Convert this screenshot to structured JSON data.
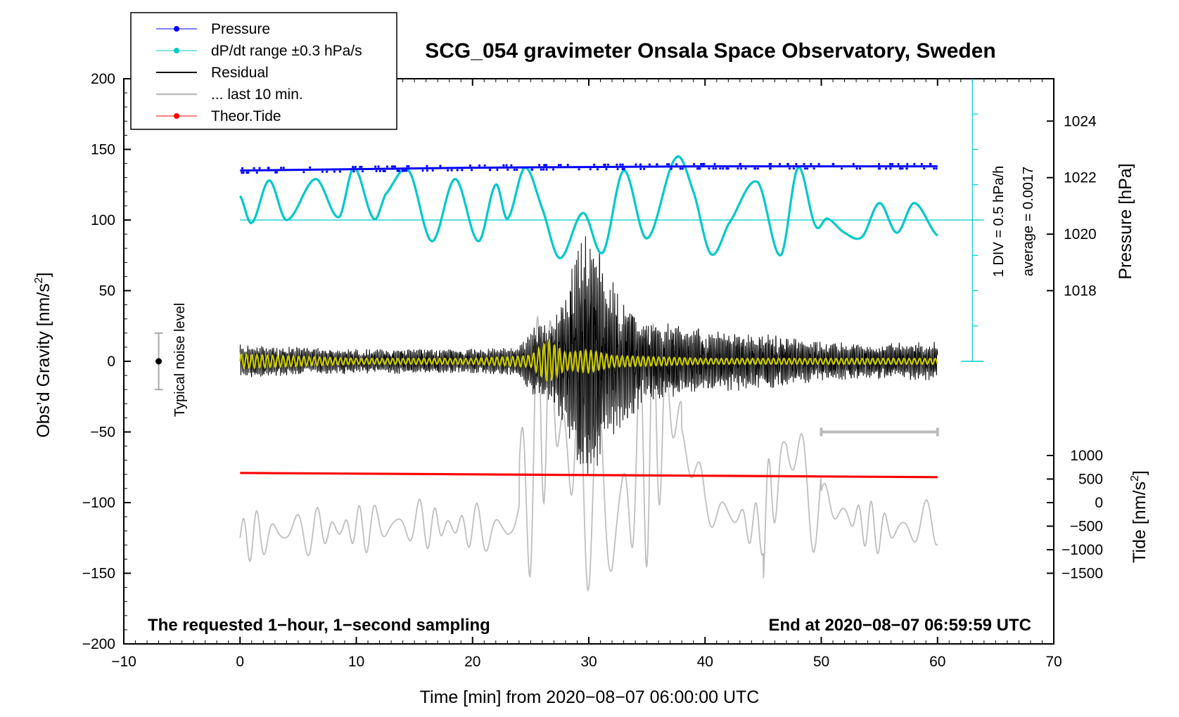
{
  "chart_data": {
    "type": "line",
    "title": "SCG_054 gravimeter Onsala Space Observatory, Sweden",
    "xlabel": "Time [min] from 2020−08−07 06:00:00 UTC",
    "ylabel": "Obs’d Gravity [nm/s",
    "ylabel_sup": "2",
    "ylabel_close": "]",
    "y2label": "Pressure [hPa]",
    "y3label": "Tide [nm/s",
    "y3label_sup": "2",
    "y3label_close": "]",
    "xlim": [
      -10,
      70
    ],
    "ylim": [
      -200,
      200
    ],
    "pressure_axis_ticks": [
      1018,
      1020,
      1022,
      1024
    ],
    "tide_axis_ticks": [
      1000,
      500,
      0,
      -500,
      -1000,
      -1500
    ],
    "x_ticks": [
      -10,
      0,
      10,
      20,
      30,
      40,
      50,
      60,
      70
    ],
    "y_ticks": [
      200,
      150,
      100,
      50,
      0,
      -50,
      -100,
      -150,
      -200
    ],
    "x_tick_labels": [
      "−10",
      "0",
      "10",
      "20",
      "30",
      "40",
      "50",
      "60",
      "70"
    ],
    "y_tick_labels": [
      "200",
      "150",
      "100",
      "50",
      "0",
      "−50",
      "−100",
      "−150",
      "−200"
    ],
    "pressure_tick_labels": [
      "1018",
      "1020",
      "1022",
      "1024"
    ],
    "tide_tick_labels": [
      "1000",
      "500",
      "0",
      "−500",
      "−1000",
      "−1500"
    ],
    "legend_position": "top-left",
    "legend": [
      {
        "label": "Pressure",
        "color": "#0000ff",
        "marker": true
      },
      {
        "label": "dP/dt range ±0.3 hPa/s",
        "color": "#00c8c8",
        "marker": true
      },
      {
        "label": "Residual",
        "color": "#000000",
        "marker": false
      },
      {
        "label": "... last 10 min.",
        "color": "#bebebe",
        "marker": false
      },
      {
        "label": "Theor.Tide",
        "color": "#ff0000",
        "marker": true
      }
    ],
    "annotations": {
      "scale_label": "1 DIV = 0.5 hPa/h",
      "average_label": "average = 0.0017",
      "noise_label": "Typical noise level",
      "bottom_left": "The requested 1−hour, 1−second sampling",
      "bottom_right": "End at 2020−08−07 06:59:59 UTC"
    },
    "series": [
      {
        "name": "Pressure",
        "color": "#0000ff",
        "x": [
          0,
          10,
          20,
          30,
          40,
          50,
          60
        ],
        "y": [
          135,
          136,
          137,
          137.5,
          138,
          138,
          138
        ]
      },
      {
        "name": "dP/dt range ±0.3 hPa/s",
        "color": "#00c8c8",
        "x": [
          0,
          1,
          2.5,
          4,
          6.5,
          8.5,
          9.8,
          11.5,
          12.5,
          14.5,
          16.5,
          18.5,
          20.5,
          22,
          23,
          24.5,
          26,
          27.5,
          29.5,
          31.2,
          33,
          35,
          37.5,
          39,
          40.5,
          42,
          44.5,
          46.5,
          48,
          49.5,
          50.5,
          52,
          53.5,
          55,
          56.5,
          58,
          60
        ],
        "y": [
          117,
          98,
          128,
          100,
          129,
          102,
          137,
          101,
          118,
          135,
          85,
          129,
          85,
          125,
          101,
          137,
          108,
          73,
          105,
          77,
          135,
          87,
          144,
          120,
          76,
          97,
          127,
          75,
          137,
          96,
          101,
          91,
          88,
          112,
          91,
          112,
          89
        ]
      },
      {
        "name": "Residual",
        "color": "#000000",
        "x": [
          0,
          10,
          20,
          24,
          25,
          27,
          28,
          29,
          29.5,
          30,
          31,
          31.5,
          32,
          33,
          35,
          37,
          40,
          45,
          50,
          55,
          60
        ],
        "envelope": [
          12,
          9,
          9,
          10,
          25,
          30,
          55,
          80,
          90,
          88,
          85,
          50,
          60,
          45,
          30,
          28,
          22,
          20,
          14,
          13,
          14
        ]
      },
      {
        "name": "... last 10 min.",
        "color": "#bebebe",
        "x": [
          0,
          5,
          10,
          15,
          20,
          23,
          24,
          25,
          26,
          26.5,
          28,
          30,
          32,
          35,
          37,
          40,
          45,
          47,
          50,
          55,
          60
        ],
        "center": [
          -125,
          -120,
          -118,
          -115,
          -118,
          -120,
          -110,
          -70,
          -40,
          -10,
          -60,
          -80,
          -120,
          -60,
          -30,
          -100,
          -120,
          -60,
          -100,
          -120,
          -115
        ]
      },
      {
        "name": "Theor.Tide",
        "color": "#ff0000",
        "x": [
          0,
          10,
          20,
          30,
          40,
          50,
          60
        ],
        "y": [
          -79,
          -79.5,
          -80,
          -80.5,
          -81,
          -81.5,
          -82
        ]
      },
      {
        "name": "Yellow (low-pass residual)",
        "color": "#c8c800",
        "x": [
          0,
          10,
          20,
          25,
          26.5,
          28,
          30,
          32,
          40,
          50,
          60
        ],
        "envelope": [
          5,
          2,
          2,
          4,
          15,
          6,
          8,
          4,
          2,
          2,
          2
        ]
      }
    ]
  }
}
